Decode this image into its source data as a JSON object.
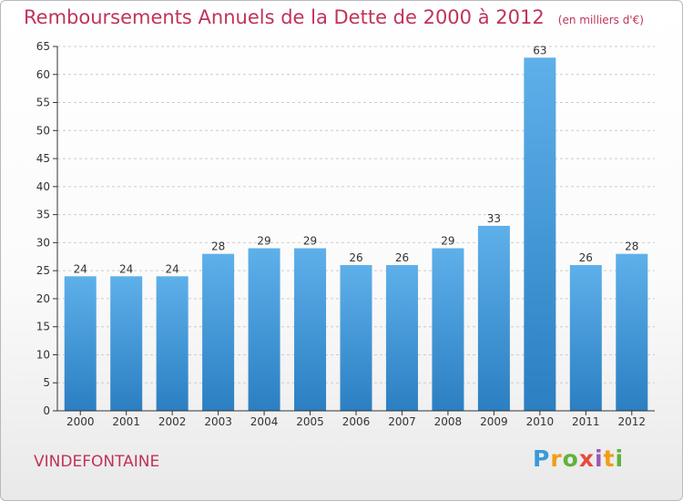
{
  "header": {
    "title": "Remboursements Annuels de la Dette de 2000 à 2012",
    "subtitle": "(en milliers d'€)"
  },
  "footer": {
    "commune": "VINDEFONTAINE",
    "logo": {
      "text": "Proxiti",
      "letter_colors": [
        "#3a9ad9",
        "#f39c12",
        "#5fb33a",
        "#e74c3c",
        "#9b59b6",
        "#f39c12",
        "#5fb33a"
      ]
    }
  },
  "chart_data": {
    "type": "bar",
    "title": "Remboursements Annuels de la Dette de 2000 à 2012",
    "subtitle": "(en milliers d'€)",
    "categories": [
      "2000",
      "2001",
      "2002",
      "2003",
      "2004",
      "2005",
      "2006",
      "2007",
      "2008",
      "2009",
      "2010",
      "2011",
      "2012"
    ],
    "values": [
      24,
      24,
      24,
      28,
      29,
      29,
      26,
      26,
      29,
      33,
      63,
      26,
      28
    ],
    "ylim": [
      0,
      65
    ],
    "yticks": [
      0,
      5,
      10,
      15,
      20,
      25,
      30,
      35,
      40,
      45,
      50,
      55,
      60,
      65
    ],
    "grid": true,
    "legend": "none",
    "colors": {
      "bar_top": "#5eb0ea",
      "bar_bottom": "#2b7fc2",
      "grid": "#cccccc",
      "axis": "#333333"
    }
  }
}
